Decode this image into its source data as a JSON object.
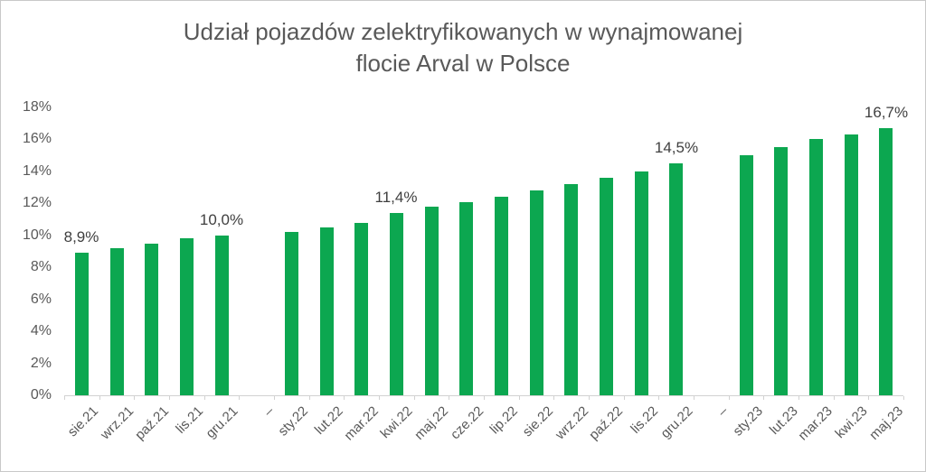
{
  "chart_data": {
    "type": "bar",
    "title": "Udział pojazdów zelektryfikowanych w wynajmowanej flocie Arval w Polsce",
    "title_lines": [
      "Udział pojazdów zelektryfikowanych w wynajmowanej",
      "flocie Arval w Polsce"
    ],
    "categories": [
      "sie.21",
      "wrz.21",
      "paź.21",
      "lis.21",
      "gru.21",
      "–",
      "sty.22",
      "lut.22",
      "mar.22",
      "kwi.22",
      "maj.22",
      "cze.22",
      "lip.22",
      "sie.22",
      "wrz.22",
      "paź.22",
      "lis.22",
      "gru.22",
      "–",
      "sty.23",
      "lut.23",
      "mar.23",
      "kwi.23",
      "maj.23"
    ],
    "values": [
      8.9,
      9.2,
      9.5,
      9.8,
      10.0,
      null,
      10.2,
      10.5,
      10.8,
      11.4,
      11.8,
      12.1,
      12.4,
      12.8,
      13.2,
      13.6,
      14.0,
      14.5,
      null,
      15.0,
      15.5,
      16.0,
      16.3,
      16.7
    ],
    "data_labels": [
      {
        "index": 0,
        "text": "8,9%"
      },
      {
        "index": 4,
        "text": "10,0%"
      },
      {
        "index": 9,
        "text": "11,4%"
      },
      {
        "index": 17,
        "text": "14,5%"
      },
      {
        "index": 23,
        "text": "16,7%"
      }
    ],
    "xlabel": "",
    "ylabel": "",
    "ylim": [
      0,
      18
    ],
    "ytick_step": 2,
    "ytick_labels": [
      "0%",
      "2%",
      "4%",
      "6%",
      "8%",
      "10%",
      "12%",
      "14%",
      "16%",
      "18%"
    ],
    "grid": false,
    "legend": false,
    "colors": {
      "bar": "#0CA750",
      "axis": "#D2D2D2",
      "tick_label": "#595959",
      "data_label": "#3F3F3F",
      "title": "#595959",
      "background": "#FFFFFF",
      "border": "#C9C9C9"
    }
  }
}
